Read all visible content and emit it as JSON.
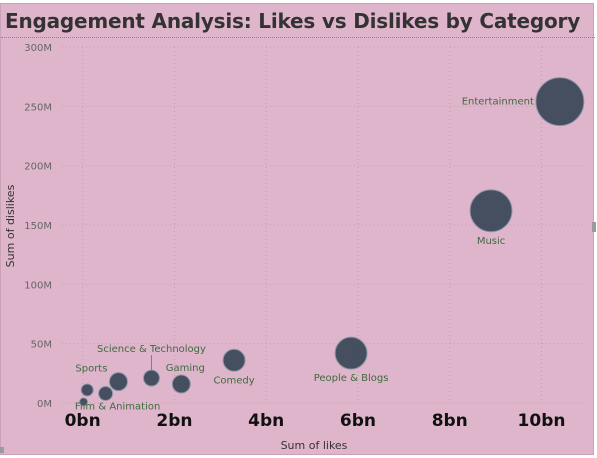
{
  "chart_data": {
    "type": "scatter",
    "title": "Engagement Analysis: Likes vs Dislikes by Category",
    "xlabel": "Sum of likes",
    "ylabel": "Sum of dislikes",
    "xlim": [
      -0.45,
      11.1
    ],
    "ylim": [
      0,
      300
    ],
    "x_ticks": [
      {
        "value": 0,
        "label": "0bn"
      },
      {
        "value": 2,
        "label": "2bn"
      },
      {
        "value": 4,
        "label": "4bn"
      },
      {
        "value": 6,
        "label": "6bn"
      },
      {
        "value": 8,
        "label": "8bn"
      },
      {
        "value": 10,
        "label": "10bn"
      }
    ],
    "y_ticks": [
      {
        "value": 0,
        "label": "0M"
      },
      {
        "value": 50,
        "label": "50M"
      },
      {
        "value": 100,
        "label": "100M"
      },
      {
        "value": 150,
        "label": "150M"
      },
      {
        "value": 200,
        "label": "200M"
      },
      {
        "value": 250,
        "label": "250M"
      },
      {
        "value": 300,
        "label": "300M"
      }
    ],
    "grid": true,
    "points": [
      {
        "label": "Entertainment",
        "x": 10.4,
        "y": 254,
        "size": 24,
        "label_side": "left"
      },
      {
        "label": "Music",
        "x": 8.9,
        "y": 162,
        "size": 21,
        "label_side": "below"
      },
      {
        "label": "People & Blogs",
        "x": 5.85,
        "y": 42,
        "size": 16,
        "label_side": "below"
      },
      {
        "label": "Comedy",
        "x": 3.3,
        "y": 36,
        "size": 11,
        "label_side": "below"
      },
      {
        "label": "Gaming",
        "x": 2.15,
        "y": 16,
        "size": 9,
        "label_side": "above"
      },
      {
        "label": "Science & Technology",
        "x": 1.5,
        "y": 21,
        "size": 8,
        "label_side": "above-leader"
      },
      {
        "label": "Sports",
        "x": 0.78,
        "y": 18,
        "size": 9,
        "label_side": "above-left"
      },
      {
        "label": "Film & Animation",
        "x": 0.5,
        "y": 8,
        "size": 7,
        "label_side": "below-right"
      },
      {
        "label": "",
        "x": 0.1,
        "y": 11,
        "size": 6,
        "label_side": "none"
      },
      {
        "label": "",
        "x": 0.02,
        "y": 1,
        "size": 4,
        "label_side": "none"
      }
    ],
    "colors": {
      "background": "#dfb5cc",
      "bubble": "#3e4a5a",
      "label": "#3f6b3f"
    }
  }
}
